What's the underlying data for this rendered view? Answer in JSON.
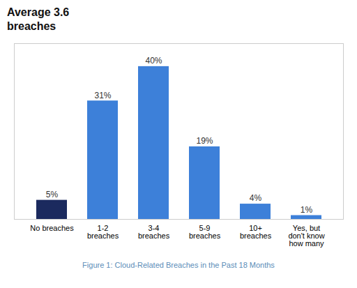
{
  "chart_data": {
    "type": "bar",
    "title": "Average 3.6\nbreaches",
    "caption": "Figure 1: Cloud-Related Breaches in the Past 18 Months",
    "categories": [
      "No breaches",
      "1-2\nbreaches",
      "3-4\nbreaches",
      "5-9\nbreaches",
      "10+\nbreaches",
      "Yes, but\ndon't know\nhow many"
    ],
    "values": [
      5,
      31,
      40,
      19,
      4,
      1
    ],
    "value_labels": [
      "5%",
      "31%",
      "40%",
      "19%",
      "4%",
      "1%"
    ],
    "colors": [
      "#1b2a5e",
      "#3d80d9",
      "#3d80d9",
      "#3d80d9",
      "#3d80d9",
      "#3d80d9"
    ],
    "ylim": [
      0,
      46
    ],
    "grid": false,
    "data_labels": true,
    "tick_labels": "x"
  }
}
